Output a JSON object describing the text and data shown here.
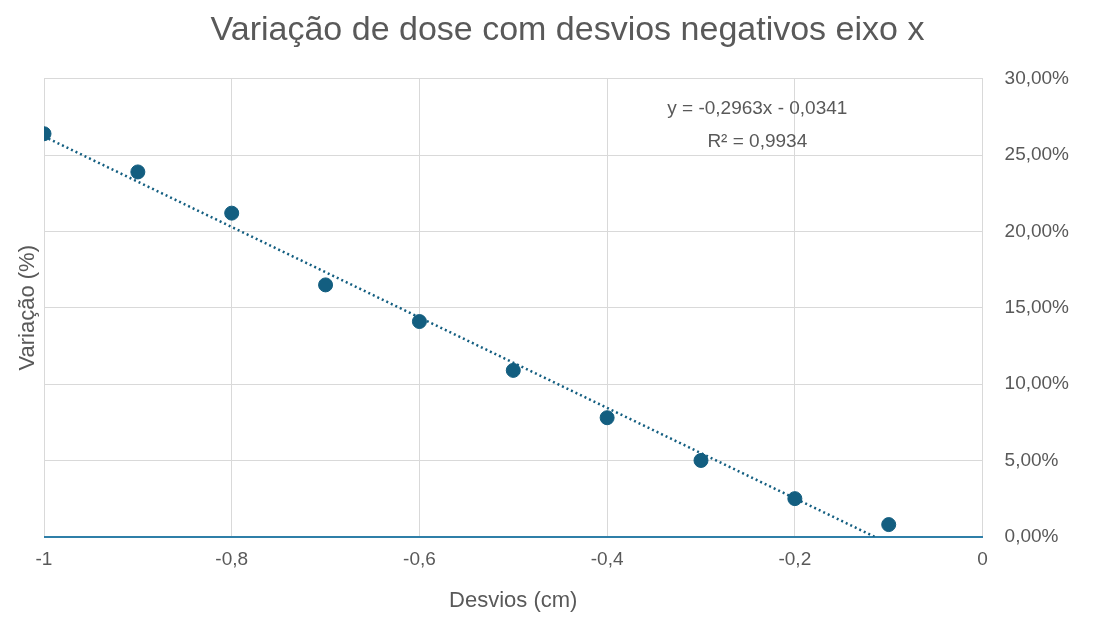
{
  "chart_data": {
    "type": "scatter",
    "title": "Variação de dose com desvios negativos eixo x",
    "xlabel": "Desvios (cm)",
    "ylabel": "Variação (%)",
    "x": [
      -1,
      -0.9,
      -0.8,
      -0.7,
      -0.6,
      -0.5,
      -0.4,
      -0.3,
      -0.2,
      -0.1
    ],
    "series": [
      {
        "type": "scatter",
        "color": "#135e80",
        "values": [
          26.4,
          23.9,
          21.2,
          16.5,
          14.1,
          10.9,
          7.8,
          5.0,
          2.5,
          0.8
        ]
      },
      {
        "type": "line",
        "color": "#135e80",
        "line_style": "dotted",
        "marker": "none",
        "x": [
          -1,
          -0.115
        ],
        "values": [
          26.22,
          0
        ]
      }
    ],
    "marker": "circle",
    "xlim": [
      -1,
      0
    ],
    "xticks": [
      {
        "value": -1,
        "label": "-1"
      },
      {
        "value": -0.8,
        "label": "-0,8"
      },
      {
        "value": -0.6,
        "label": "-0,6"
      },
      {
        "value": -0.4,
        "label": "-0,4"
      },
      {
        "value": -0.2,
        "label": "-0,2"
      },
      {
        "value": 0,
        "label": "0"
      }
    ],
    "ylim": [
      0,
      30
    ],
    "yticks": [
      {
        "value": 0,
        "label": "0,00%"
      },
      {
        "value": 5,
        "label": "5,00%"
      },
      {
        "value": 10,
        "label": "10,00%"
      },
      {
        "value": 15,
        "label": "15,00%"
      },
      {
        "value": 20,
        "label": "20,00%"
      },
      {
        "value": 25,
        "label": "25,00%"
      },
      {
        "value": 30,
        "label": "30,00%"
      }
    ],
    "grid": true,
    "annotations": [
      "y = -0,2963x - 0,0341",
      "R² = 0,9934"
    ]
  }
}
